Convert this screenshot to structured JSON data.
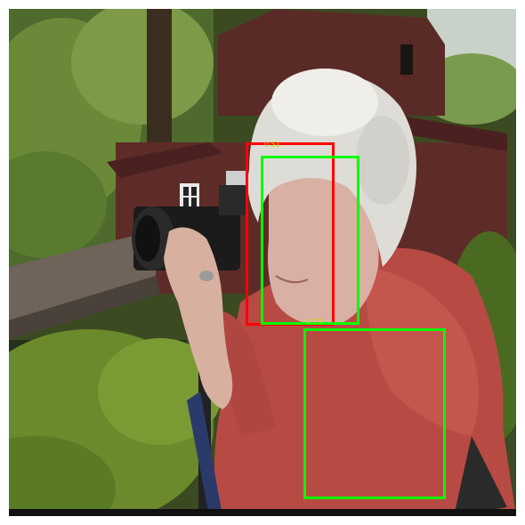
{
  "image": {
    "description_tag": "photo-elderly-woman-with-camera"
  },
  "detections": [
    {
      "label": "",
      "score_text": "0.51",
      "color": "#ff0000"
    },
    {
      "label": "",
      "score_text": "",
      "color": "#00ff00"
    },
    {
      "label": "",
      "score_text": "0.73",
      "color": "#00ff00"
    }
  ],
  "colors": {
    "box_red": "#ff0000",
    "box_green": "#00ff00",
    "label_text": "#c8e000"
  }
}
